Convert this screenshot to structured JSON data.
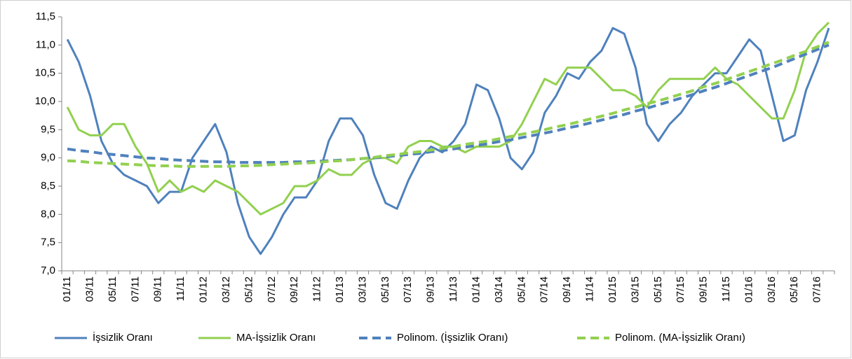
{
  "chart_data": {
    "type": "line",
    "categories": [
      "01/11",
      null,
      "03/11",
      null,
      "05/11",
      null,
      "07/11",
      null,
      "09/11",
      null,
      "11/11",
      null,
      "01/12",
      null,
      "03/12",
      null,
      "05/12",
      null,
      "07/12",
      null,
      "09/12",
      null,
      "11/12",
      null,
      "01/13",
      null,
      "03/13",
      null,
      "05/13",
      null,
      "07/13",
      null,
      "09/13",
      null,
      "11/13",
      null,
      "01/14",
      null,
      "03/14",
      null,
      "05/14",
      null,
      "07/14",
      null,
      "09/14",
      null,
      "11/14",
      null,
      "01/15",
      null,
      "03/15",
      null,
      "05/15",
      null,
      "07/15",
      null,
      "09/15",
      null,
      "11/15",
      null,
      "01/16",
      null,
      "03/16",
      null,
      "05/16",
      null,
      "07/16",
      null
    ],
    "series": [
      {
        "name": "İşsizlik Oranı",
        "color": "#4f81bd",
        "dashed": false,
        "values": [
          11.1,
          10.7,
          10.1,
          9.3,
          8.9,
          8.7,
          8.6,
          8.5,
          8.2,
          8.4,
          8.4,
          9.0,
          9.3,
          9.6,
          9.1,
          8.2,
          7.6,
          7.3,
          7.6,
          8.0,
          8.3,
          8.3,
          8.6,
          9.3,
          9.7,
          9.7,
          9.4,
          8.7,
          8.2,
          8.1,
          8.6,
          9.0,
          9.2,
          9.1,
          9.3,
          9.6,
          10.3,
          10.2,
          9.7,
          9.0,
          8.8,
          9.1,
          9.8,
          10.1,
          10.5,
          10.4,
          10.7,
          10.9,
          11.3,
          11.2,
          10.6,
          9.6,
          9.3,
          9.6,
          9.8,
          10.1,
          10.3,
          10.5,
          10.5,
          10.8,
          11.1,
          10.9,
          10.1,
          9.3,
          9.4,
          10.2,
          10.7,
          11.3
        ]
      },
      {
        "name": "MA-İşsizlik Oranı",
        "color": "#92d050",
        "dashed": false,
        "values": [
          9.9,
          9.5,
          9.4,
          9.4,
          9.6,
          9.6,
          9.2,
          8.9,
          8.4,
          8.6,
          8.4,
          8.5,
          8.4,
          8.6,
          8.5,
          8.4,
          8.2,
          8.0,
          8.1,
          8.2,
          8.5,
          8.5,
          8.6,
          8.8,
          8.7,
          8.7,
          8.9,
          9.0,
          9.0,
          8.9,
          9.2,
          9.3,
          9.3,
          9.2,
          9.2,
          9.1,
          9.2,
          9.2,
          9.2,
          9.3,
          9.6,
          10.0,
          10.4,
          10.3,
          10.6,
          10.6,
          10.6,
          10.4,
          10.2,
          10.2,
          10.1,
          9.9,
          10.2,
          10.4,
          10.4,
          10.4,
          10.4,
          10.6,
          10.4,
          10.3,
          10.1,
          9.9,
          9.7,
          9.7,
          10.2,
          10.9,
          11.2,
          11.4
        ]
      },
      {
        "name": "Polinom. (İşsizlik Oranı)",
        "color": "#4f81bd",
        "dashed": true,
        "values": [
          9.16,
          9.13,
          9.11,
          9.08,
          9.06,
          9.04,
          9.02,
          9.0,
          8.99,
          8.97,
          8.96,
          8.95,
          8.94,
          8.93,
          8.93,
          8.92,
          8.92,
          8.92,
          8.92,
          8.92,
          8.93,
          8.93,
          8.94,
          8.95,
          8.96,
          8.97,
          8.99,
          9.0,
          9.02,
          9.04,
          9.06,
          9.08,
          9.11,
          9.13,
          9.16,
          9.19,
          9.22,
          9.25,
          9.29,
          9.32,
          9.36,
          9.4,
          9.44,
          9.48,
          9.53,
          9.57,
          9.62,
          9.67,
          9.72,
          9.77,
          9.83,
          9.88,
          9.94,
          10.0,
          10.06,
          10.12,
          10.19,
          10.25,
          10.32,
          10.39,
          10.46,
          10.53,
          10.6,
          10.68,
          10.76,
          10.84,
          10.92,
          11.0
        ]
      },
      {
        "name": "Polinom. (MA-İşsizlik Oranı)",
        "color": "#92d050",
        "dashed": true,
        "values": [
          8.95,
          8.94,
          8.92,
          8.91,
          8.9,
          8.89,
          8.88,
          8.87,
          8.86,
          8.86,
          8.85,
          8.85,
          8.85,
          8.85,
          8.85,
          8.86,
          8.86,
          8.87,
          8.88,
          8.89,
          8.9,
          8.91,
          8.92,
          8.94,
          8.95,
          8.97,
          8.99,
          9.01,
          9.04,
          9.06,
          9.09,
          9.11,
          9.14,
          9.17,
          9.2,
          9.24,
          9.27,
          9.3,
          9.34,
          9.38,
          9.42,
          9.46,
          9.5,
          9.55,
          9.59,
          9.64,
          9.69,
          9.74,
          9.79,
          9.85,
          9.9,
          9.96,
          10.01,
          10.07,
          10.13,
          10.19,
          10.26,
          10.32,
          10.39,
          10.46,
          10.53,
          10.6,
          10.67,
          10.74,
          10.82,
          10.89,
          10.97,
          11.05
        ]
      }
    ],
    "ylim": [
      7,
      11.5
    ],
    "yticks": [
      {
        "value": 7,
        "label": "7,0"
      },
      {
        "value": 7.5,
        "label": "7,5"
      },
      {
        "value": 8,
        "label": "8,0"
      },
      {
        "value": 8.5,
        "label": "8,5"
      },
      {
        "value": 9,
        "label": "9,0"
      },
      {
        "value": 9.5,
        "label": "9,5"
      },
      {
        "value": 10,
        "label": "10,0"
      },
      {
        "value": 10.5,
        "label": "10,5"
      },
      {
        "value": 11,
        "label": "11,0"
      },
      {
        "value": 11.5,
        "label": "11,5"
      }
    ],
    "grid": false,
    "legend": "bottom"
  }
}
